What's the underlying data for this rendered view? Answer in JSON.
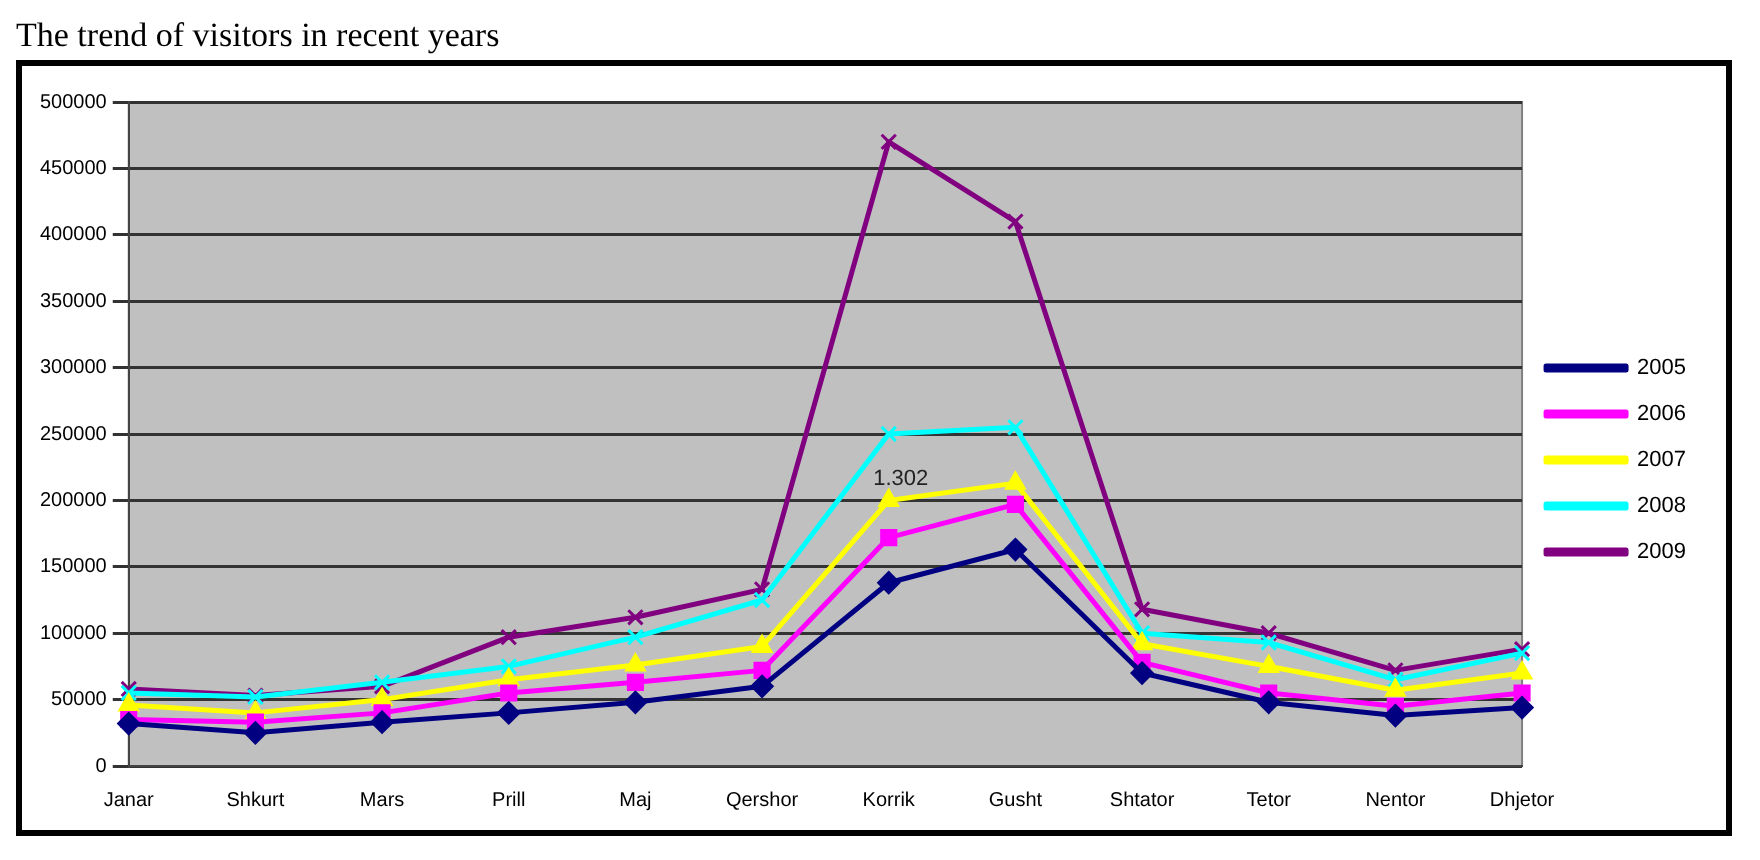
{
  "chart_data": {
    "type": "line",
    "title": "The trend of visitors in recent years",
    "categories": [
      "Janar",
      "Shkurt",
      "Mars",
      "Prill",
      "Maj",
      "Qershor",
      "Korrik",
      "Gusht",
      "Shtator",
      "Tetor",
      "Nentor",
      "Dhjetor"
    ],
    "series": [
      {
        "name": "2005",
        "color": "#000080",
        "marker": "diamond",
        "values": [
          32000,
          25000,
          33000,
          40000,
          48000,
          60000,
          138000,
          163000,
          70000,
          48000,
          38000,
          44000
        ]
      },
      {
        "name": "2006",
        "color": "#ff00ff",
        "marker": "square",
        "values": [
          35000,
          33000,
          40000,
          55000,
          63000,
          72000,
          172000,
          197000,
          78000,
          55000,
          45000,
          55000
        ]
      },
      {
        "name": "2007",
        "color": "#ffff00",
        "marker": "triangle",
        "values": [
          46000,
          40000,
          50000,
          65000,
          76000,
          90000,
          200000,
          213000,
          92000,
          75000,
          57000,
          70000
        ]
      },
      {
        "name": "2008",
        "color": "#00ffff",
        "marker": "cross",
        "values": [
          55000,
          52000,
          63000,
          75000,
          97000,
          125000,
          250000,
          255000,
          100000,
          93000,
          65000,
          85000
        ]
      },
      {
        "name": "2009",
        "color": "#800080",
        "marker": "cross",
        "values": [
          58000,
          53000,
          60000,
          97000,
          112000,
          133000,
          470000,
          410000,
          118000,
          100000,
          72000,
          88000
        ]
      }
    ],
    "ylim": [
      0,
      500000
    ],
    "yticks": [
      0,
      50000,
      100000,
      150000,
      200000,
      250000,
      300000,
      350000,
      400000,
      450000,
      500000
    ],
    "grid": "y",
    "legend": "right",
    "line_style": "solid",
    "annotations": [
      {
        "text": "1.302",
        "x": "Korrik",
        "y": 200000
      }
    ]
  }
}
